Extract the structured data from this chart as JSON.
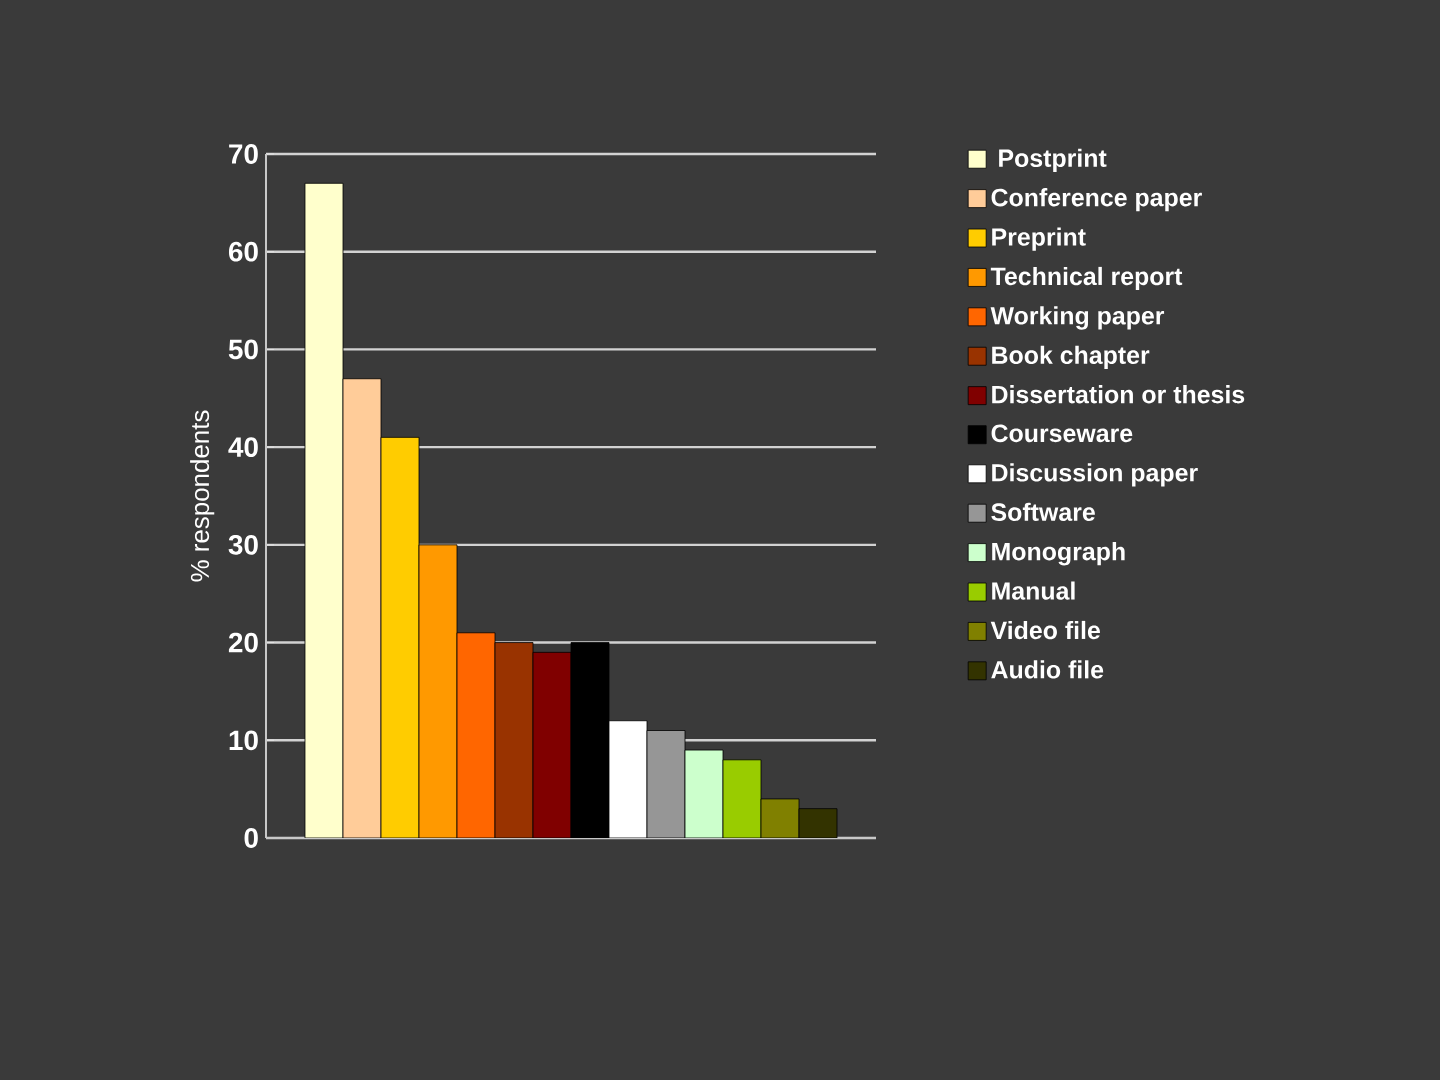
{
  "chart_data": {
    "type": "bar",
    "ylabel": "% respondents",
    "categories": [
      null
    ],
    "series": [
      {
        "name": " Postprint",
        "color": "#ffffcc",
        "values": [
          67
        ]
      },
      {
        "name": "Conference paper",
        "color": "#ffcc99",
        "values": [
          47
        ]
      },
      {
        "name": "Preprint",
        "color": "#ffcc00",
        "values": [
          41
        ]
      },
      {
        "name": "Technical report",
        "color": "#ff9900",
        "values": [
          30
        ]
      },
      {
        "name": "Working paper",
        "color": "#ff6600",
        "values": [
          21
        ]
      },
      {
        "name": "Book chapter",
        "color": "#993300",
        "values": [
          20
        ]
      },
      {
        "name": "Dissertation or thesis",
        "color": "#800000",
        "values": [
          19
        ]
      },
      {
        "name": "Courseware",
        "color": "#000000",
        "values": [
          20
        ]
      },
      {
        "name": "Discussion paper",
        "color": "#ffffff",
        "values": [
          12
        ]
      },
      {
        "name": "Software",
        "color": "#969696",
        "values": [
          11
        ]
      },
      {
        "name": "Monograph",
        "color": "#ccffcc",
        "values": [
          9
        ]
      },
      {
        "name": "Manual",
        "color": "#99cc00",
        "values": [
          8
        ]
      },
      {
        "name": "Video file",
        "color": "#808000",
        "values": [
          4
        ]
      },
      {
        "name": "Audio file",
        "color": "#333300",
        "values": [
          3
        ]
      }
    ],
    "ylim": [
      0,
      70
    ],
    "yticks": [
      0,
      10,
      20,
      30,
      40,
      50,
      60,
      70
    ],
    "grid": "y",
    "legend": "right",
    "tick_labels": "y"
  }
}
